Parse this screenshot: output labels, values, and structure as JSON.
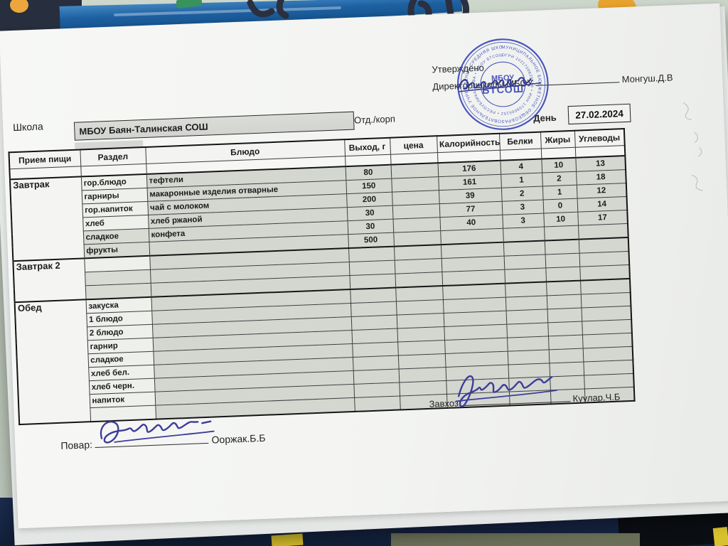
{
  "header": {
    "approved_line1": "Утверждено",
    "approved_prefix": "Директор школы МБОУ",
    "approved_name": "Монгуш.Д.В",
    "school_label": "Школа",
    "school_value": "МБОУ Баян-Талинская СОШ",
    "dept_label": "Отд./корп",
    "day_label": "День",
    "date_value": "27.02.2024"
  },
  "stamp": {
    "ring_outer": "МУНИЦИПАЛЬНОЕ БЮДЖЕТНОЕ ОБЩЕОБРАЗОВАТЕЛЬНОЕ УЧРЕЖДЕНИЕ СРЕДНЯЯ ШКОЛА ДЗУН-ХЕМЧИКСКОГО КОЖУУНА",
    "ring_inner": "ОГРН 1021700625716 • ИНН 1709005152 • РЕСПУБЛИКА ТЫВА • МБОУ БТСОШ",
    "center_line1": "МБОУ",
    "center_line2": "БТСОШ",
    "ink_color": "#2b3ab3"
  },
  "table": {
    "headers": [
      "Прием пищи",
      "Раздел",
      "Блюдо",
      "Выход, г",
      "цена",
      "Калорийность",
      "Белки",
      "Жиры",
      "Углеводы"
    ],
    "sections": [
      {
        "meal": "Завтрак",
        "key": "breakfast",
        "rows": [
          [
            "гор.блюдо",
            "тефтели",
            "80",
            "",
            "176",
            "4",
            "10",
            "13"
          ],
          [
            "гарниры",
            "макаронные изделия отварные",
            "150",
            "",
            "161",
            "1",
            "2",
            "18"
          ],
          [
            "гор.напиток",
            "чай с молоком",
            "200",
            "",
            "39",
            "2",
            "1",
            "12"
          ],
          [
            "хлеб",
            "хлеб  ржаной",
            "30",
            "",
            "77",
            "3",
            "0",
            "14"
          ],
          [
            "сладкое",
            "конфета",
            "30",
            "",
            "40",
            "3",
            "10",
            "17"
          ],
          [
            "фрукты",
            "",
            "500",
            "",
            "",
            "",
            "",
            ""
          ]
        ]
      },
      {
        "meal": "Завтрак 2",
        "key": "breakfast2",
        "rows": [
          [
            "",
            "",
            "",
            "",
            "",
            "",
            "",
            ""
          ],
          [
            "",
            "",
            "",
            "",
            "",
            "",
            "",
            ""
          ],
          [
            "",
            "",
            "",
            "",
            "",
            "",
            "",
            ""
          ]
        ]
      },
      {
        "meal": "Обед",
        "key": "lunch",
        "rows": [
          [
            "закуска",
            "",
            "",
            "",
            "",
            "",
            "",
            ""
          ],
          [
            "1 блюдо",
            "",
            "",
            "",
            "",
            "",
            "",
            ""
          ],
          [
            "2 блюдо",
            "",
            "",
            "",
            "",
            "",
            "",
            ""
          ],
          [
            "гарнир",
            "",
            "",
            "",
            "",
            "",
            "",
            ""
          ],
          [
            "сладкое",
            "",
            "",
            "",
            "",
            "",
            "",
            ""
          ],
          [
            "хлеб бел.",
            "",
            "",
            "",
            "",
            "",
            "",
            ""
          ],
          [
            "хлеб черн.",
            "",
            "",
            "",
            "",
            "",
            "",
            ""
          ],
          [
            "напиток",
            "",
            "",
            "",
            "",
            "",
            "",
            ""
          ],
          [
            "",
            "",
            "",
            "",
            "",
            "",
            "",
            ""
          ]
        ]
      }
    ]
  },
  "signatures": {
    "zavhoz_label": "Завхоз:",
    "zavhoz_name": "Куулар.Ч.Б",
    "povar_label": "Повар:",
    "povar_name": "Ооржак.Б.Б",
    "ink_color": "#3d3d99"
  }
}
